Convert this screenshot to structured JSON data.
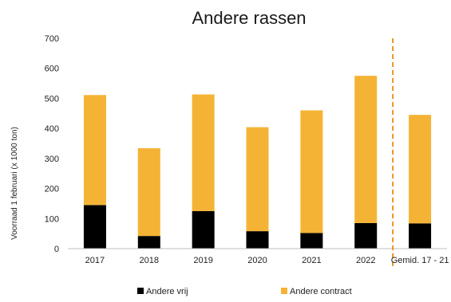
{
  "chart_data": {
    "type": "bar",
    "stacked": true,
    "title": "Andere rassen",
    "xlabel": "",
    "ylabel": "Voorraad 1 februari (x 1000 ton)",
    "ylim": [
      0,
      700
    ],
    "yticks": [
      0,
      100,
      200,
      300,
      400,
      500,
      600,
      700
    ],
    "grid": false,
    "legend_position": "bottom",
    "categories": [
      "2017",
      "2018",
      "2019",
      "2020",
      "2021",
      "2022",
      "Gemid. 17 - 21"
    ],
    "series": [
      {
        "name": "Andere vrij",
        "color": "#000000",
        "values": [
          145,
          42,
          125,
          58,
          52,
          85,
          84
        ]
      },
      {
        "name": "Andere contract",
        "color": "#f5b335",
        "values": [
          366,
          292,
          388,
          346,
          408,
          490,
          361
        ]
      }
    ],
    "divider": {
      "after_category": "2022",
      "color": "#e6961e",
      "style": "dashed"
    }
  }
}
